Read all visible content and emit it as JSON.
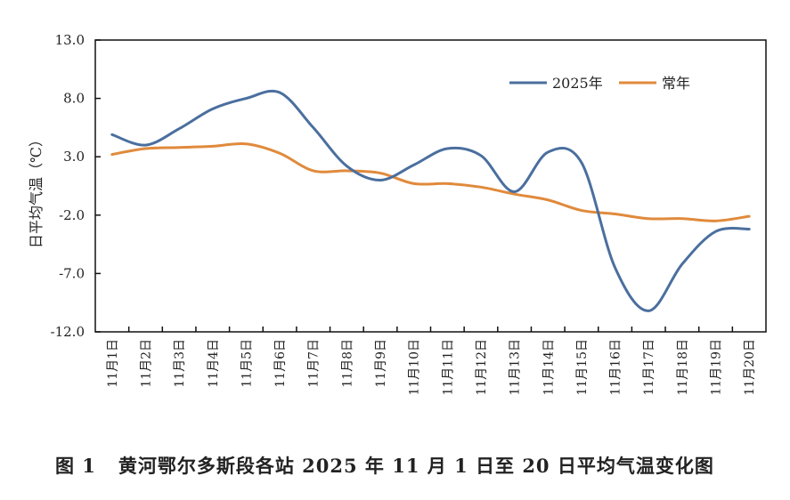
{
  "chart_data": {
    "type": "line",
    "title": "",
    "xlabel": "",
    "ylabel": "日平均气温（℃）",
    "ylim": [
      -12.0,
      13.0
    ],
    "yticks": [
      "13.0",
      "8.0",
      "3.0",
      "-2.0",
      "-7.0",
      "-12.0"
    ],
    "grid": false,
    "legend_position": "top-right",
    "categories": [
      "11月1日",
      "11月2日",
      "11月3日",
      "11月4日",
      "11月5日",
      "11月6日",
      "11月7日",
      "11月8日",
      "11月9日",
      "11月10日",
      "11月11日",
      "11月12日",
      "11月13日",
      "11月14日",
      "11月15日",
      "11月16日",
      "11月17日",
      "11月18日",
      "11月19日",
      "11月20日"
    ],
    "series": [
      {
        "name": "2025年",
        "color": "#4a6f9e",
        "values": [
          4.9,
          4.0,
          5.4,
          7.1,
          8.0,
          8.5,
          5.5,
          2.2,
          1.0,
          2.3,
          3.7,
          3.1,
          0.0,
          3.4,
          2.5,
          -6.5,
          -10.2,
          -6.2,
          -3.4,
          -3.2
        ]
      },
      {
        "name": "常年",
        "color": "#e08a3c",
        "values": [
          3.2,
          3.7,
          3.8,
          3.9,
          4.1,
          3.3,
          1.8,
          1.8,
          1.6,
          0.7,
          0.7,
          0.4,
          -0.2,
          -0.7,
          -1.6,
          -1.9,
          -2.3,
          -2.3,
          -2.5,
          -2.1
        ]
      }
    ]
  },
  "caption": "图 1   黄河鄂尔多斯段各站 2025 年 11 月 1 日至 20 日平均气温变化图"
}
